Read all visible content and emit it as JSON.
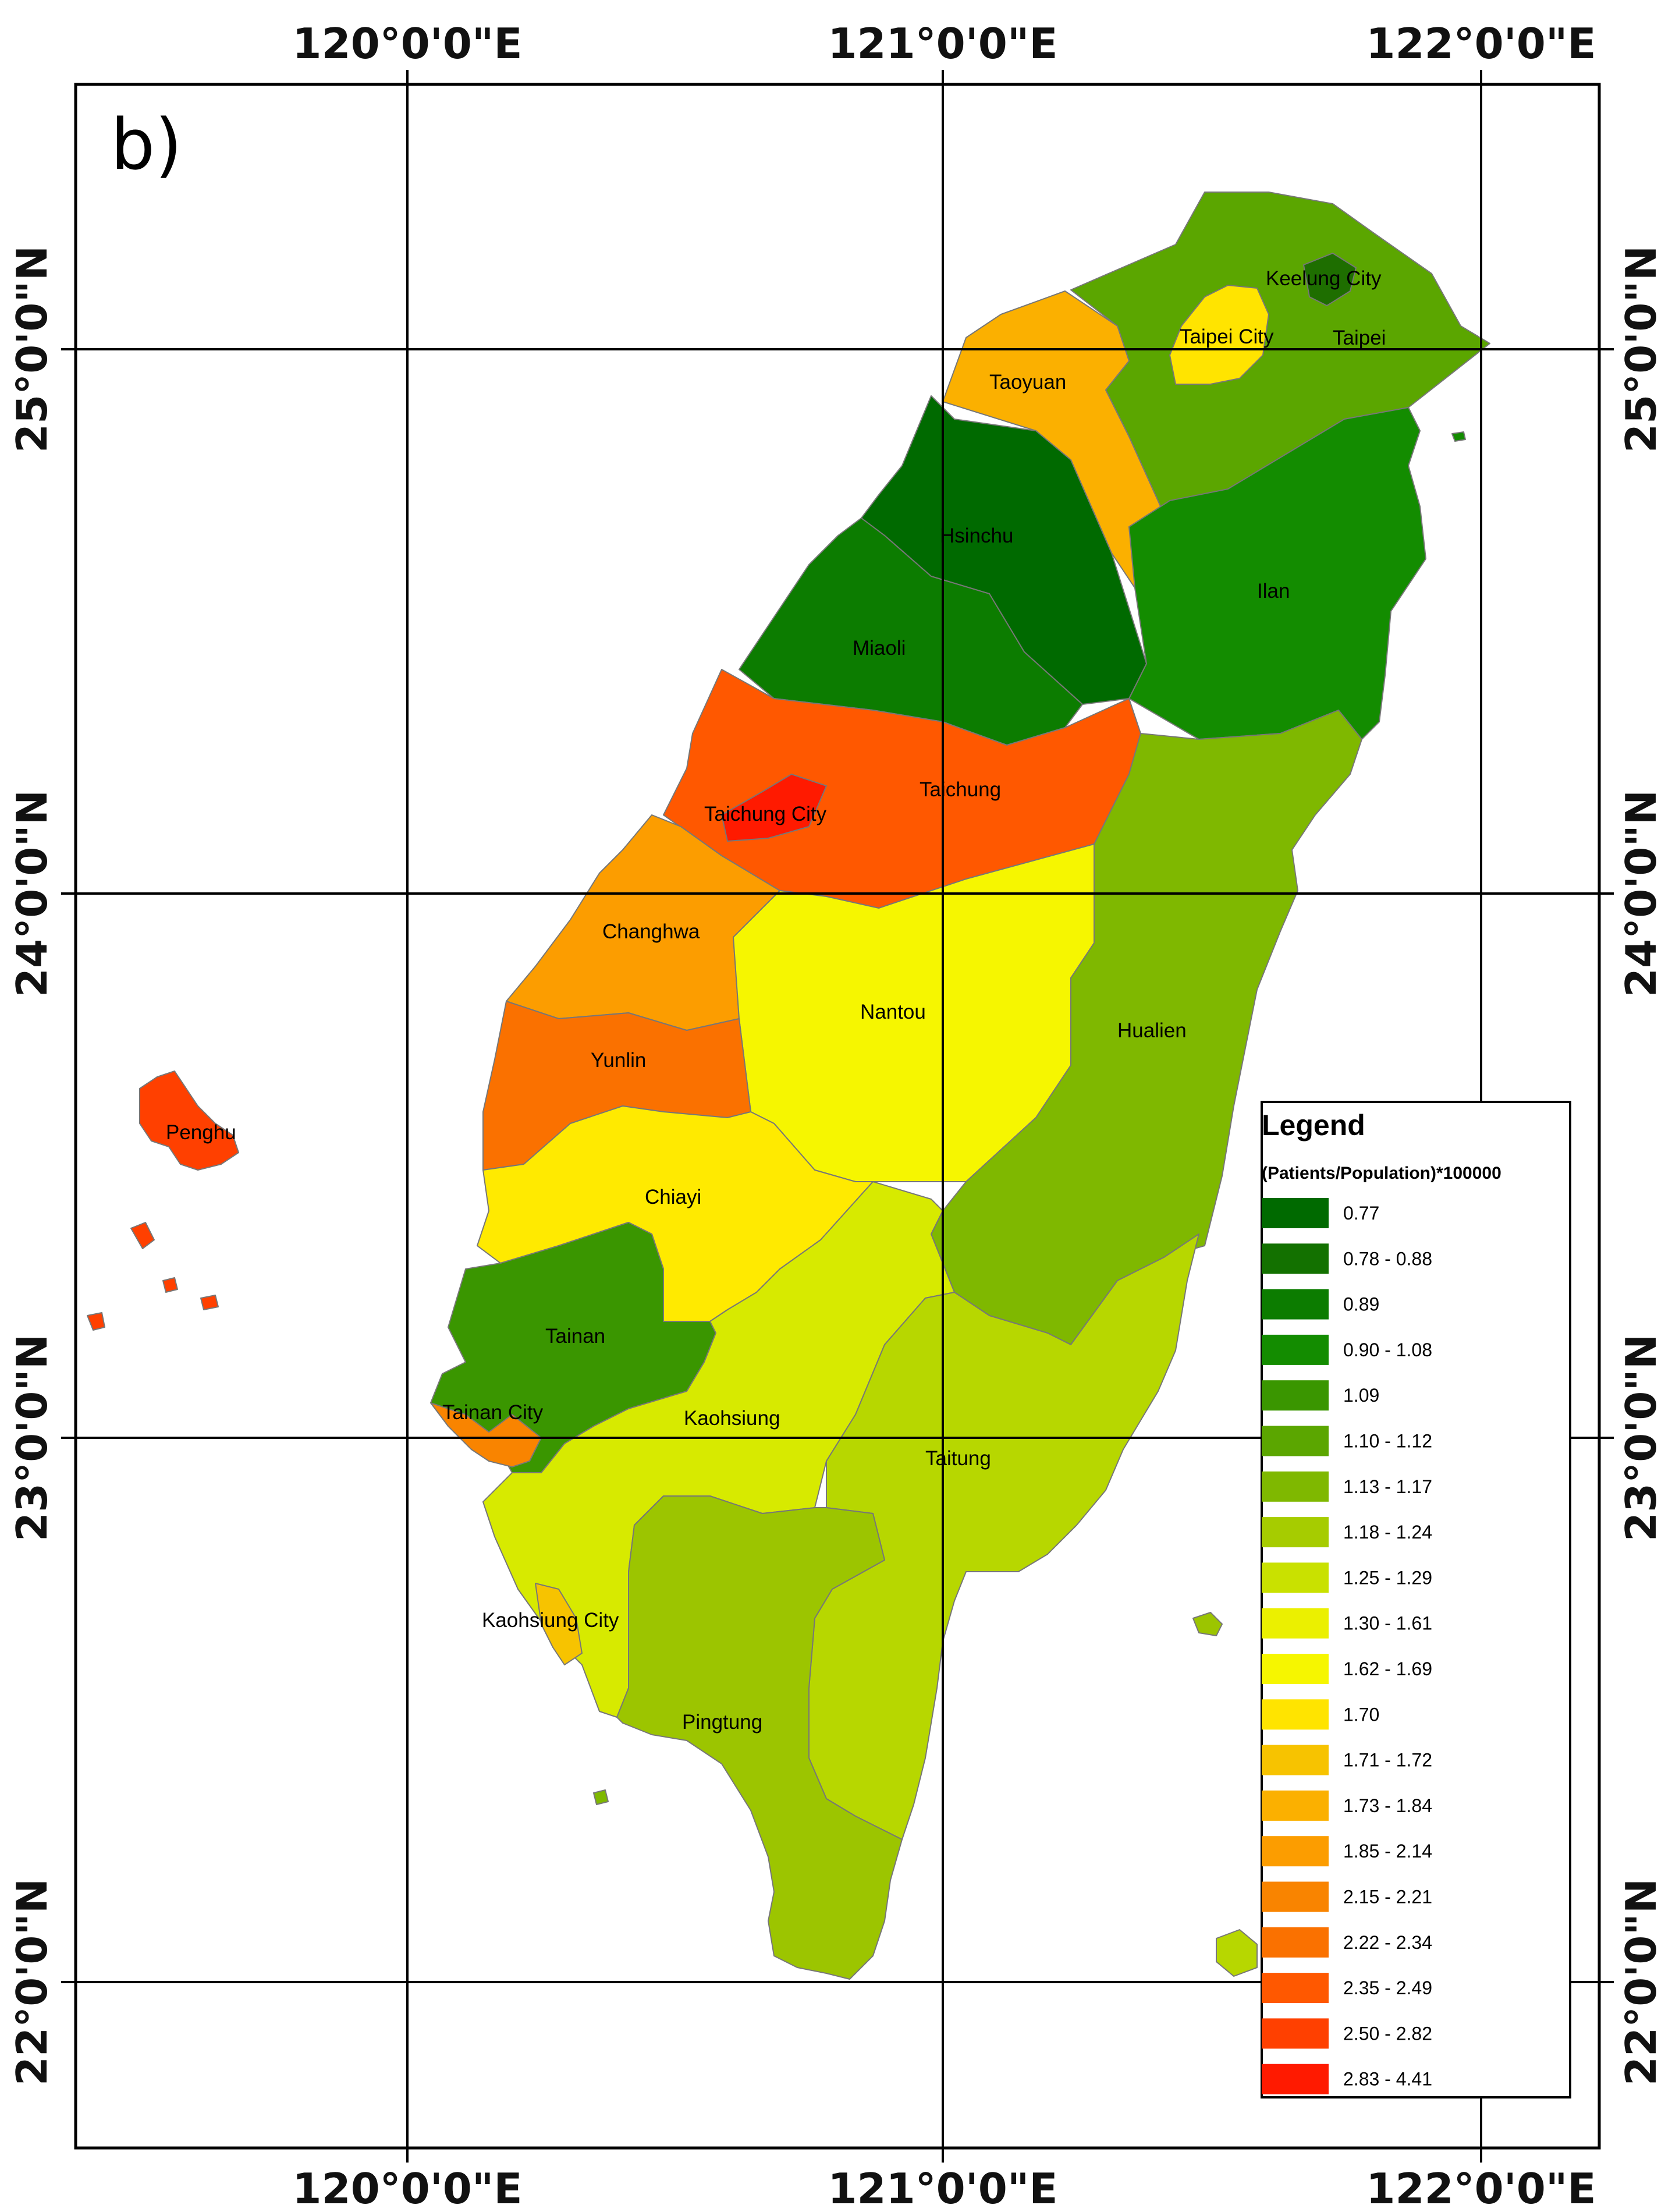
{
  "panel_label": "b)",
  "graticule": {
    "longitudes": [
      "120°0'0\"E",
      "121°0'0\"E",
      "122°0'0\"E"
    ],
    "latitudes": [
      "25°0'0\"N",
      "24°0'0\"N",
      "23°0'0\"N",
      "22°0'0\"N"
    ]
  },
  "regions": [
    {
      "name": "Keelung City",
      "class": "0.78 - 0.88",
      "color": "#1e6e00"
    },
    {
      "name": "Taipei City",
      "class": "1.70",
      "color": "#ffe400"
    },
    {
      "name": "Taipei",
      "class": "1.10 - 1.12",
      "color": "#5ba600"
    },
    {
      "name": "Taoyuan",
      "class": "1.73 - 1.84",
      "color": "#fbb000"
    },
    {
      "name": "Hsinchu",
      "class": "0.77",
      "color": "#006a00"
    },
    {
      "name": "Ilan",
      "class": "0.90 - 1.08",
      "color": "#138c00"
    },
    {
      "name": "Miaoli",
      "class": "0.89",
      "color": "#0c7c00"
    },
    {
      "name": "Taichung",
      "class": "2.35 - 2.49",
      "color": "#ff5800"
    },
    {
      "name": "Taichung City",
      "class": "2.83 - 4.41",
      "color": "#ff1a00"
    },
    {
      "name": "Changhwa",
      "class": "1.85 - 2.14",
      "color": "#fc9d00"
    },
    {
      "name": "Nantou",
      "class": "1.62 - 1.69",
      "color": "#f6f600"
    },
    {
      "name": "Hualien",
      "class": "1.13 - 1.17",
      "color": "#7fb800"
    },
    {
      "name": "Yunlin",
      "class": "2.22 - 2.34",
      "color": "#fa7100"
    },
    {
      "name": "Penghu",
      "class": "2.50 - 2.82",
      "color": "#ff4000"
    },
    {
      "name": "Chiayi",
      "class": "1.70",
      "color": "#ffea00"
    },
    {
      "name": "Tainan",
      "class": "1.09",
      "color": "#3a9600"
    },
    {
      "name": "Tainan City",
      "class": "2.15 - 2.21",
      "color": "#f98400"
    },
    {
      "name": "Kaohsiung",
      "class": "1.25 - 1.29",
      "color": "#d7ea00"
    },
    {
      "name": "Taitung",
      "class": "1.18 - 1.24",
      "color": "#b7d700"
    },
    {
      "name": "Kaohsiung City",
      "class": "1.71 - 1.72",
      "color": "#f7c300"
    },
    {
      "name": "Pingtung",
      "class": "1.13 - 1.17",
      "color": "#9cc500"
    }
  ],
  "legend": {
    "title": "Legend",
    "subtitle": "(Patients/Population)*100000",
    "classes": [
      {
        "label": "0.77",
        "color": "#006a00"
      },
      {
        "label": "0.78 - 0.88",
        "color": "#137100"
      },
      {
        "label": "0.89",
        "color": "#0c7c00"
      },
      {
        "label": "0.90 - 1.08",
        "color": "#138c00"
      },
      {
        "label": "1.09",
        "color": "#3a9600"
      },
      {
        "label": "1.10 - 1.12",
        "color": "#5ba600"
      },
      {
        "label": "1.13 - 1.17",
        "color": "#7fb800"
      },
      {
        "label": "1.18 - 1.24",
        "color": "#a6cc00"
      },
      {
        "label": "1.25 - 1.29",
        "color": "#c9e100"
      },
      {
        "label": "1.30 - 1.61",
        "color": "#ebf000"
      },
      {
        "label": "1.62 - 1.69",
        "color": "#f6f600"
      },
      {
        "label": "1.70",
        "color": "#ffe400"
      },
      {
        "label": "1.71 - 1.72",
        "color": "#f7c300"
      },
      {
        "label": "1.73 - 1.84",
        "color": "#fbb000"
      },
      {
        "label": "1.85 - 2.14",
        "color": "#fc9d00"
      },
      {
        "label": "2.15 - 2.21",
        "color": "#f98400"
      },
      {
        "label": "2.22 - 2.34",
        "color": "#fa7100"
      },
      {
        "label": "2.35 - 2.49",
        "color": "#ff5800"
      },
      {
        "label": "2.50 - 2.82",
        "color": "#ff4000"
      },
      {
        "label": "2.83 - 4.41",
        "color": "#ff1a00"
      }
    ]
  }
}
